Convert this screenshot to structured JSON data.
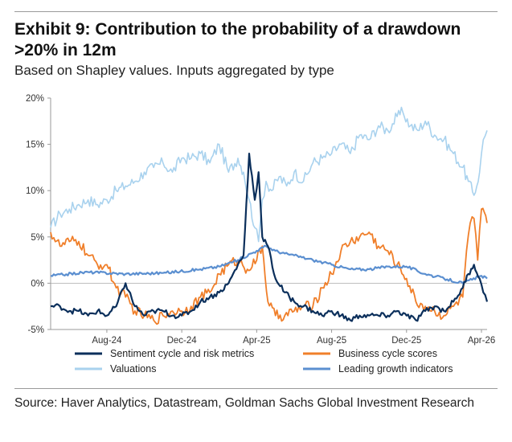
{
  "header": {
    "title": "Exhibit 9: Contribution to the probability of a drawdown >20% in 12m",
    "subtitle": "Based on Shapley values. Inputs aggregated by type"
  },
  "footer": {
    "source": "Source: Haver Analytics, Datastream, Goldman Sachs Global Investment Research"
  },
  "chart_data": {
    "type": "line",
    "title": "Contribution to the probability of a drawdown >20% in 12m",
    "ylim": [
      -5,
      20
    ],
    "xlim": [
      0,
      23.3
    ],
    "y_ticks": [
      {
        "value": 20,
        "label": "20%"
      },
      {
        "value": 15,
        "label": "15%"
      },
      {
        "value": 10,
        "label": "10%"
      },
      {
        "value": 5,
        "label": "5%"
      },
      {
        "value": 0,
        "label": "0%"
      },
      {
        "value": -5,
        "label": "-5%"
      }
    ],
    "x_ticks": [
      {
        "value": 3,
        "label": "Aug-24"
      },
      {
        "value": 7,
        "label": "Dec-24"
      },
      {
        "value": 11,
        "label": "Apr-25"
      },
      {
        "value": 15,
        "label": "Aug-25"
      },
      {
        "value": 19,
        "label": "Dec-25"
      },
      {
        "value": 23,
        "label": "Apr-26"
      }
    ],
    "x_units": "months since May-24",
    "series": [
      {
        "name": "Valuations",
        "color": "#a9d2ee",
        "x": [
          0,
          0.5,
          1,
          1.5,
          2,
          2.5,
          3,
          3.5,
          4,
          4.5,
          5,
          5.5,
          6,
          6.5,
          7,
          7.5,
          8,
          8.5,
          9,
          9.5,
          10,
          10.3,
          10.6,
          10.9,
          11.1,
          11.3,
          11.5,
          11.8,
          12.2,
          12.6,
          13,
          13.5,
          14,
          14.5,
          15,
          15.5,
          16,
          16.5,
          17,
          17.5,
          18,
          18.5,
          18.8,
          19.2,
          19.6,
          20,
          20.5,
          21,
          21.5,
          22,
          22.3,
          22.6,
          22.9,
          23.1,
          23.3
        ],
        "y": [
          6,
          7.5,
          8,
          8.5,
          9,
          8.5,
          9,
          10,
          10.5,
          11,
          12,
          12.5,
          13,
          12,
          13.5,
          13.5,
          14,
          13,
          15,
          12,
          13.5,
          12,
          9,
          6,
          4.5,
          9,
          11,
          10,
          11.5,
          10.5,
          12,
          11,
          13,
          13.5,
          14,
          15,
          14,
          16,
          15.5,
          17,
          16.5,
          18,
          18.5,
          17,
          16.5,
          17.5,
          16,
          15.5,
          14,
          12.5,
          11,
          9.5,
          12,
          15.5,
          16.5
        ]
      },
      {
        "name": "Business cycle scores",
        "color": "#f07f2a",
        "x": [
          0,
          0.5,
          1,
          1.5,
          2,
          2.5,
          3,
          3.5,
          4,
          4.5,
          5,
          5.5,
          6,
          6.5,
          7,
          7.5,
          8,
          8.5,
          9,
          9.5,
          10,
          10.5,
          11,
          11.3,
          11.6,
          12,
          12.5,
          13,
          13.5,
          14,
          14.5,
          15,
          15.5,
          16,
          16.5,
          17,
          17.5,
          18,
          18.5,
          19,
          19.5,
          20,
          20.5,
          21,
          21.5,
          22,
          22.2,
          22.4,
          22.6,
          22.8,
          23,
          23.3
        ],
        "y": [
          5.5,
          4,
          4.5,
          4.5,
          3,
          2,
          2,
          -0.5,
          -1.5,
          -3,
          -3.5,
          -4,
          -3.5,
          -3,
          -3,
          -2.5,
          -1.5,
          -1,
          1,
          2,
          2.5,
          1.5,
          2.5,
          4,
          -2,
          -3.5,
          -3.5,
          -3,
          -2.5,
          -2.5,
          -0.5,
          1,
          3.5,
          4.5,
          5,
          5.5,
          4,
          3.5,
          2,
          0.5,
          -2,
          -2.5,
          -3,
          -3.5,
          -2.5,
          -1.5,
          3.5,
          6.5,
          7,
          2.5,
          8,
          6.5
        ]
      },
      {
        "name": "Leading growth indicators",
        "color": "#5b8fd0",
        "x": [
          0,
          2,
          4,
          6,
          8,
          9,
          10,
          11,
          11.5,
          12,
          12.5,
          13,
          14,
          15,
          16,
          17,
          18,
          19,
          20,
          21,
          22,
          23,
          23.3
        ],
        "y": [
          0.8,
          1.2,
          1.0,
          1.1,
          1.5,
          1.8,
          2.5,
          3.5,
          4.0,
          3.5,
          3.2,
          3.0,
          2.5,
          2.0,
          1.5,
          1.5,
          1.8,
          1.8,
          1.0,
          0.5,
          0.0,
          0.8,
          0.5
        ]
      },
      {
        "name": "Sentiment cycle and risk metrics",
        "color": "#0b2f5b",
        "x": [
          0,
          0.5,
          1,
          1.5,
          2,
          2.5,
          3,
          3.5,
          4,
          4.5,
          5,
          5.5,
          6,
          6.5,
          7,
          7.5,
          8,
          8.5,
          9,
          9.5,
          10,
          10.3,
          10.6,
          10.9,
          11.1,
          11.3,
          11.6,
          12,
          12.5,
          13,
          13.5,
          14,
          14.5,
          15,
          15.5,
          16,
          16.5,
          17,
          17.5,
          18,
          18.5,
          19,
          19.5,
          20,
          20.5,
          21,
          21.5,
          22,
          22.3,
          22.6,
          22.9,
          23.1,
          23.3
        ],
        "y": [
          -2.5,
          -2.5,
          -3,
          -3,
          -3.5,
          -3,
          -3.5,
          -2.5,
          0,
          -2.5,
          -3.5,
          -3,
          -3,
          -3.5,
          -3.5,
          -3,
          -2,
          -1.5,
          -1,
          0,
          2,
          3,
          14,
          9,
          12,
          5,
          4,
          0.5,
          -1,
          -2,
          -2.5,
          -3,
          -3.5,
          -3,
          -3.5,
          -4,
          -3.5,
          -3.5,
          -3.5,
          -3.5,
          -3,
          -3.5,
          -4,
          -3,
          -2.5,
          -3,
          -2,
          -0.5,
          1,
          2,
          0.5,
          -1,
          -2
        ]
      }
    ],
    "legend": {
      "placement": "bottom",
      "entries": [
        {
          "name": "Sentiment cycle and risk metrics",
          "color": "#0b2f5b"
        },
        {
          "name": "Business cycle scores",
          "color": "#f07f2a"
        },
        {
          "name": "Valuations",
          "color": "#a9d2ee"
        },
        {
          "name": "Leading growth indicators",
          "color": "#5b8fd0"
        }
      ]
    }
  }
}
